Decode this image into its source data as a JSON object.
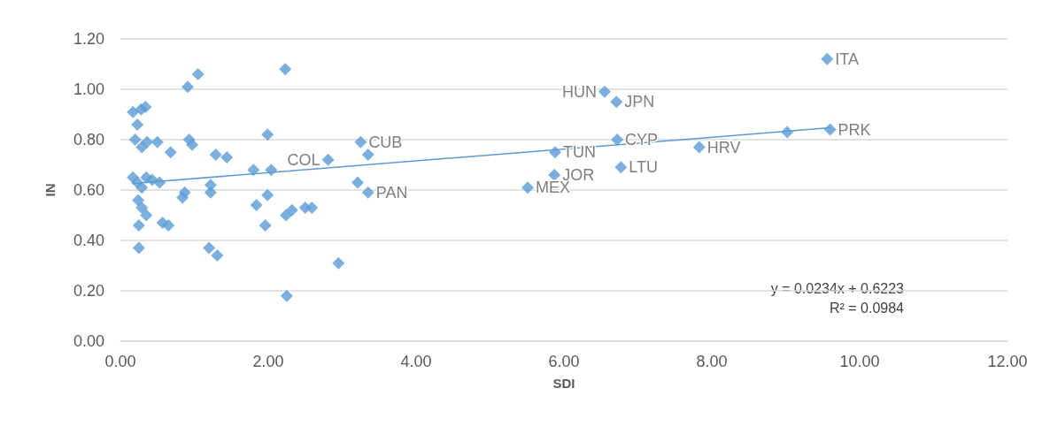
{
  "chart_data": {
    "type": "scatter",
    "xlabel": "SDI",
    "ylabel": "IN",
    "marker": "diamond",
    "grid": "y",
    "xlim": [
      0,
      12
    ],
    "xticks": [
      {
        "value": 0,
        "label": "0.00"
      },
      {
        "value": 2,
        "label": "2.00"
      },
      {
        "value": 4,
        "label": "4.00"
      },
      {
        "value": 6,
        "label": "6.00"
      },
      {
        "value": 8,
        "label": "8.00"
      },
      {
        "value": 10,
        "label": "10.00"
      },
      {
        "value": 12,
        "label": "12.00"
      }
    ],
    "ylim": [
      0,
      1.2
    ],
    "yticks": [
      {
        "value": 0,
        "label": "0.00"
      },
      {
        "value": 0.2,
        "label": "0.20"
      },
      {
        "value": 0.4,
        "label": "0.40"
      },
      {
        "value": 0.6,
        "label": "0.60"
      },
      {
        "value": 0.8,
        "label": "0.80"
      },
      {
        "value": 1,
        "label": "1.00"
      },
      {
        "value": 1.2,
        "label": "1.20"
      }
    ],
    "series": [
      {
        "color": "#5b9bd5",
        "x": [
          0.17,
          0.23,
          0.28,
          0.34,
          0.2,
          0.29,
          0.36,
          0.5,
          0.68,
          0.91,
          1.05,
          0.93,
          0.97,
          1.29,
          1.44,
          1.8,
          2.04,
          1.99,
          2.23,
          0.17,
          0.23,
          0.35,
          0.43,
          0.53,
          0.29,
          1.22,
          1.22,
          1.84,
          1.99,
          0.84,
          0.87,
          0.24,
          0.29,
          0.35,
          0.25,
          0.57,
          0.65,
          1.96,
          1.2,
          1.31,
          0.25,
          2.25,
          2.24,
          2.32,
          2.5,
          2.59,
          2.95,
          2.81,
          3.25,
          3.35,
          3.21,
          3.35,
          5.51,
          5.87,
          5.88,
          6.55,
          6.71,
          6.72,
          6.77,
          7.83,
          9.02,
          9.6,
          9.56
        ],
        "values": [
          0.91,
          0.86,
          0.92,
          0.93,
          0.8,
          0.77,
          0.79,
          0.79,
          0.75,
          1.01,
          1.06,
          0.8,
          0.78,
          0.74,
          0.73,
          0.68,
          0.68,
          0.82,
          1.08,
          0.65,
          0.63,
          0.65,
          0.64,
          0.63,
          0.61,
          0.62,
          0.59,
          0.54,
          0.58,
          0.57,
          0.59,
          0.56,
          0.53,
          0.5,
          0.46,
          0.47,
          0.46,
          0.46,
          0.37,
          0.34,
          0.37,
          0.18,
          0.5,
          0.52,
          0.53,
          0.53,
          0.31,
          0.72,
          0.79,
          0.74,
          0.63,
          0.59,
          0.61,
          0.66,
          0.75,
          0.99,
          0.95,
          0.8,
          0.69,
          0.77,
          0.83,
          0.84,
          1.12
        ]
      },
      {
        "type": "line",
        "color": "#5b9bd5",
        "marker": "none",
        "x": [
          0.17,
          9.6
        ],
        "values": [
          0.626,
          0.847
        ]
      }
    ],
    "annotations": [
      {
        "text": "COL",
        "x": 2.81,
        "y": 0.72
      },
      {
        "text": "CUB",
        "x": 3.25,
        "y": 0.79
      },
      {
        "text": "PAN",
        "x": 3.35,
        "y": 0.59
      },
      {
        "text": "MEX",
        "x": 5.51,
        "y": 0.61
      },
      {
        "text": "JOR",
        "x": 5.87,
        "y": 0.66
      },
      {
        "text": "TUN",
        "x": 5.88,
        "y": 0.75
      },
      {
        "text": "HUN",
        "x": 6.55,
        "y": 0.99
      },
      {
        "text": "JPN",
        "x": 6.71,
        "y": 0.95
      },
      {
        "text": "CYP",
        "x": 6.72,
        "y": 0.8
      },
      {
        "text": "LTU",
        "x": 6.77,
        "y": 0.69
      },
      {
        "text": "HRV",
        "x": 7.83,
        "y": 0.77
      },
      {
        "text": "PRK",
        "x": 9.6,
        "y": 0.84
      },
      {
        "text": "ITA",
        "x": 9.56,
        "y": 1.12
      },
      "y = 0.0234x + 0.6223",
      "R² = 0.0984"
    ]
  }
}
